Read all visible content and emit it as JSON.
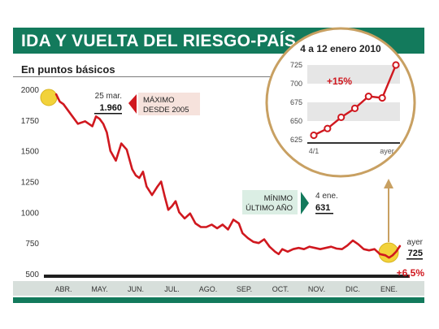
{
  "header": {
    "title": "IDA Y VUELTA DEL RIESGO-PAÍS",
    "subtitle": "En puntos básicos"
  },
  "annotations": {
    "max": {
      "date": "25 mar.",
      "value": "1.960",
      "label_line1": "MÁXIMO",
      "label_line2": "DESDE 2005"
    },
    "min": {
      "label_line1": "MÍNIMO",
      "label_line2": "ÚLTIMO AÑO",
      "date": "4 ene.",
      "value": "631"
    },
    "last": {
      "date": "ayer",
      "value": "725",
      "change": "+6,5%"
    }
  },
  "inset": {
    "title": "4 a 12 enero 2010",
    "change": "+15%",
    "x_start_label": "4/1",
    "x_end_label": "ayer",
    "y_ticks": [
      "625",
      "650",
      "675",
      "700",
      "725"
    ]
  },
  "colors": {
    "brand_green": "#137a5c",
    "line_red": "#d0181f",
    "highlight_yellow": "#f2d23a",
    "inset_border": "#c8a062",
    "month_band": "#d7dfdb"
  },
  "chart_data": [
    {
      "type": "line",
      "title": "IDA Y VUELTA DEL RIESGO-PAÍS",
      "subtitle": "En puntos básicos",
      "xlabel": "",
      "ylabel": "",
      "y_ticks": [
        500,
        750,
        1000,
        1250,
        1500,
        1750,
        2000
      ],
      "ylim": [
        500,
        2000
      ],
      "categories": [
        "ABR.",
        "MAY.",
        "JUN.",
        "JUL.",
        "AGO.",
        "SEP.",
        "OCT.",
        "NOV.",
        "DIC.",
        "ENE."
      ],
      "grid": false,
      "series": [
        {
          "values": [
            [
              -0.2,
              1960
            ],
            [
              -0.1,
              1900
            ],
            [
              0.0,
              1880
            ],
            [
              0.2,
              1800
            ],
            [
              0.4,
              1720
            ],
            [
              0.6,
              1740
            ],
            [
              0.8,
              1700
            ],
            [
              0.9,
              1780
            ],
            [
              1.0,
              1760
            ],
            [
              1.1,
              1720
            ],
            [
              1.2,
              1650
            ],
            [
              1.3,
              1500
            ],
            [
              1.45,
              1420
            ],
            [
              1.6,
              1560
            ],
            [
              1.75,
              1510
            ],
            [
              1.9,
              1350
            ],
            [
              2.0,
              1300
            ],
            [
              2.1,
              1280
            ],
            [
              2.2,
              1330
            ],
            [
              2.3,
              1210
            ],
            [
              2.45,
              1140
            ],
            [
              2.6,
              1210
            ],
            [
              2.7,
              1250
            ],
            [
              2.8,
              1130
            ],
            [
              2.9,
              1020
            ],
            [
              3.0,
              1050
            ],
            [
              3.1,
              1090
            ],
            [
              3.2,
              1000
            ],
            [
              3.35,
              950
            ],
            [
              3.5,
              990
            ],
            [
              3.65,
              910
            ],
            [
              3.8,
              880
            ],
            [
              3.95,
              880
            ],
            [
              4.1,
              900
            ],
            [
              4.25,
              870
            ],
            [
              4.4,
              900
            ],
            [
              4.55,
              860
            ],
            [
              4.7,
              940
            ],
            [
              4.85,
              910
            ],
            [
              4.95,
              830
            ],
            [
              5.1,
              790
            ],
            [
              5.25,
              760
            ],
            [
              5.4,
              750
            ],
            [
              5.55,
              780
            ],
            [
              5.7,
              720
            ],
            [
              5.85,
              680
            ],
            [
              5.95,
              660
            ],
            [
              6.05,
              700
            ],
            [
              6.2,
              680
            ],
            [
              6.35,
              700
            ],
            [
              6.5,
              710
            ],
            [
              6.65,
              700
            ],
            [
              6.8,
              720
            ],
            [
              6.95,
              710
            ],
            [
              7.1,
              700
            ],
            [
              7.25,
              710
            ],
            [
              7.4,
              720
            ],
            [
              7.55,
              705
            ],
            [
              7.7,
              700
            ],
            [
              7.85,
              730
            ],
            [
              8.0,
              770
            ],
            [
              8.15,
              740
            ],
            [
              8.3,
              700
            ],
            [
              8.45,
              690
            ],
            [
              8.6,
              700
            ],
            [
              8.75,
              660
            ],
            [
              8.9,
              650
            ],
            [
              9.0,
              631
            ],
            [
              9.1,
              650
            ],
            [
              9.2,
              681
            ],
            [
              9.3,
              725
            ]
          ]
        }
      ]
    },
    {
      "type": "line",
      "title": "4 a 12 enero 2010",
      "y_ticks": [
        625,
        650,
        675,
        700,
        725
      ],
      "ylim": [
        625,
        725
      ],
      "categories": [
        "4/1",
        "",
        "",
        "",
        "",
        "",
        "ayer"
      ],
      "series": [
        {
          "values": [
            631,
            640,
            655,
            667,
            683,
            681,
            725
          ]
        }
      ]
    }
  ]
}
